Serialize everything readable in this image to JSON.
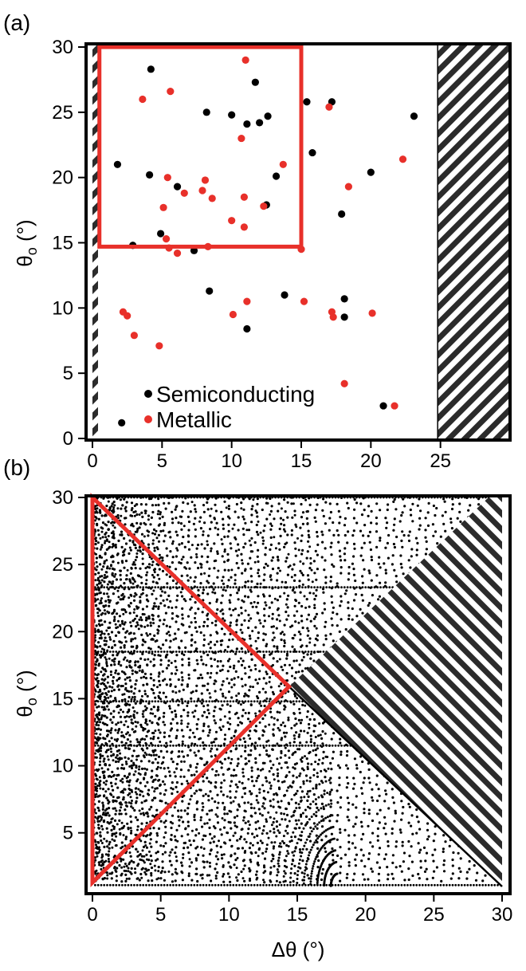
{
  "chart_data": [
    {
      "panel_label": "(a)",
      "type": "scatter",
      "ylabel": "θ",
      "ylabel_sub": "o",
      "ylabel_unit": " (°)",
      "xlim": [
        0,
        30
      ],
      "ylim": [
        0,
        30
      ],
      "x_ticks": [
        "0",
        "5",
        "10",
        "15",
        "20",
        "25"
      ],
      "y_ticks": [
        "0",
        "5",
        "10",
        "15",
        "20",
        "25",
        "30"
      ],
      "hatched_regions": [
        {
          "x_from": 0,
          "x_to": 0.4
        },
        {
          "x_from": 24.8,
          "x_to": 30
        }
      ],
      "highlight_box": {
        "x": [
          0.5,
          15
        ],
        "y": [
          14.7,
          30
        ],
        "color": "#e8302a"
      },
      "legend": {
        "placement": "bottom-center"
      },
      "series": [
        {
          "name": "Semiconducting",
          "color": "#000000",
          "points": [
            [
              1.8,
              21.0
            ],
            [
              2.1,
              1.2
            ],
            [
              2.9,
              14.8
            ],
            [
              4.2,
              28.3
            ],
            [
              4.1,
              20.2
            ],
            [
              4.9,
              15.7
            ],
            [
              6.1,
              19.3
            ],
            [
              7.3,
              14.4
            ],
            [
              8.2,
              25.0
            ],
            [
              8.4,
              11.3
            ],
            [
              10.0,
              24.8
            ],
            [
              11.1,
              24.1
            ],
            [
              11.1,
              8.4
            ],
            [
              11.7,
              27.3
            ],
            [
              12.0,
              24.2
            ],
            [
              12.6,
              24.7
            ],
            [
              12.5,
              17.9
            ],
            [
              13.2,
              20.1
            ],
            [
              13.8,
              11.0
            ],
            [
              15.4,
              25.8
            ],
            [
              15.8,
              21.9
            ],
            [
              17.2,
              25.8
            ],
            [
              17.9,
              17.2
            ],
            [
              18.1,
              10.7
            ],
            [
              18.1,
              9.3
            ],
            [
              20.0,
              20.4
            ],
            [
              20.9,
              2.5
            ],
            [
              23.1,
              24.7
            ]
          ]
        },
        {
          "name": "Metallic",
          "color": "#e8302a",
          "points": [
            [
              2.2,
              9.7
            ],
            [
              2.5,
              9.4
            ],
            [
              3.0,
              7.9
            ],
            [
              3.6,
              26.0
            ],
            [
              4.8,
              7.1
            ],
            [
              5.1,
              17.7
            ],
            [
              5.3,
              15.3
            ],
            [
              5.4,
              20.0
            ],
            [
              5.5,
              14.6
            ],
            [
              5.6,
              26.6
            ],
            [
              6.1,
              14.2
            ],
            [
              6.6,
              18.8
            ],
            [
              7.9,
              19.0
            ],
            [
              8.1,
              19.8
            ],
            [
              8.3,
              14.7
            ],
            [
              8.6,
              18.4
            ],
            [
              10.0,
              16.7
            ],
            [
              10.1,
              9.5
            ],
            [
              10.7,
              23.0
            ],
            [
              10.9,
              16.2
            ],
            [
              10.9,
              18.5
            ],
            [
              11.0,
              29.0
            ],
            [
              11.1,
              10.5
            ],
            [
              12.3,
              17.8
            ],
            [
              13.7,
              21.0
            ],
            [
              15.0,
              14.5
            ],
            [
              15.2,
              10.5
            ],
            [
              17.0,
              25.4
            ],
            [
              17.2,
              9.7
            ],
            [
              17.3,
              9.3
            ],
            [
              18.1,
              4.2
            ],
            [
              18.4,
              19.3
            ],
            [
              20.1,
              9.6
            ],
            [
              21.7,
              2.5
            ],
            [
              22.3,
              21.4
            ]
          ]
        }
      ]
    },
    {
      "panel_label": "(b)",
      "type": "scatter",
      "xlabel": "Δθ (°)",
      "ylabel": "θ",
      "ylabel_sub": "o",
      "ylabel_unit": " (°)",
      "xlim": [
        0,
        30
      ],
      "ylim": [
        1,
        30
      ],
      "x_ticks": [
        "0",
        "5",
        "10",
        "15",
        "20",
        "25",
        "30"
      ],
      "y_ticks": [
        "5",
        "10",
        "15",
        "20",
        "25",
        "30"
      ],
      "hatched_region": {
        "vertices": [
          [
            14.4,
            15.9
          ],
          [
            29.0,
            30
          ],
          [
            30,
            30
          ],
          [
            30,
            1
          ]
        ]
      },
      "boundary_line": {
        "from": [
          14.4,
          15.9
        ],
        "to": [
          30,
          1
        ]
      },
      "highlight_triangle": {
        "vertices": [
          [
            0,
            30
          ],
          [
            14.4,
            15.9
          ],
          [
            0,
            1.3
          ]
        ],
        "color": "#e8302a"
      },
      "dense_points_color": "#000000"
    }
  ]
}
